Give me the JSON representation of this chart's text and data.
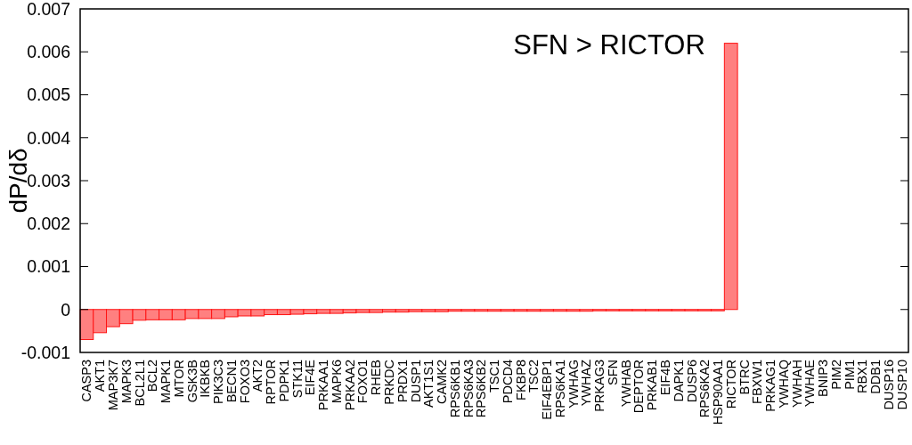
{
  "chart_data": {
    "type": "bar",
    "title": "SFN > RICTOR",
    "ylabel": "dP/dδ",
    "categories": [
      "CASP3",
      "AKT1",
      "MAP3K7",
      "MAPK3",
      "BCL2L1",
      "BCL2",
      "MAPK1",
      "MTOR",
      "GSK3B",
      "IKBKB",
      "PIK3C3",
      "BECN1",
      "FOXO3",
      "AKT2",
      "RPTOR",
      "PDPK1",
      "STK11",
      "EIF4E",
      "PRKAA1",
      "MAPK6",
      "PRKAA2",
      "FOXO1",
      "RHEB",
      "PRKDC",
      "PRDX1",
      "DUSP1",
      "AKT1S1",
      "CAMK2",
      "RPS6KB1",
      "RPS6KA3",
      "RPS6KB2",
      "TSC1",
      "PDCD4",
      "FKBP8",
      "TSC2",
      "EIF4EBP1",
      "RPS6KA1",
      "YWHAG",
      "YWHAZ",
      "PRKAG3",
      "SFN",
      "YWHAB",
      "DEPTOR",
      "PRKAB1",
      "EIF4B",
      "DAPK1",
      "DUSP6",
      "RPS6KA2",
      "HSP90AA1",
      "RICTOR",
      "BTRC",
      "FBXW1",
      "PRKAG1",
      "YWHAQ",
      "YWHAH",
      "YWHAE",
      "BNIP3",
      "PIM2",
      "PIM1",
      "RBX1",
      "DDB1",
      "DUSP16",
      "DUSP10"
    ],
    "values": [
      -0.0007,
      -0.00054,
      -0.0004,
      -0.00033,
      -0.00025,
      -0.00024,
      -0.00024,
      -0.00024,
      -0.00021,
      -0.00021,
      -0.00021,
      -0.00017,
      -0.00015,
      -0.00015,
      -0.00012,
      -0.00012,
      -0.00011,
      -0.0001,
      -9e-05,
      -9e-05,
      -8e-05,
      -7e-05,
      -7e-05,
      -6e-05,
      -6e-05,
      -5e-05,
      -5e-05,
      -5e-05,
      -4e-05,
      -4e-05,
      -4e-05,
      -4e-05,
      -4e-05,
      -4e-05,
      -4e-05,
      -4e-05,
      -4e-05,
      -4e-05,
      -4e-05,
      -3e-05,
      -3e-05,
      -3e-05,
      -3e-05,
      -3e-05,
      -3e-05,
      -3e-05,
      -3e-05,
      -3e-05,
      -3e-05,
      0.0062,
      0,
      0,
      0,
      0,
      0,
      0,
      0,
      0,
      0,
      0,
      0,
      0,
      0
    ],
    "color": "#ff8080",
    "ylim": [
      -0.001,
      0.007
    ],
    "yticks": [
      -0.001,
      0,
      0.001,
      0.002,
      0.003,
      0.004,
      0.005,
      0.006,
      0.007
    ]
  }
}
